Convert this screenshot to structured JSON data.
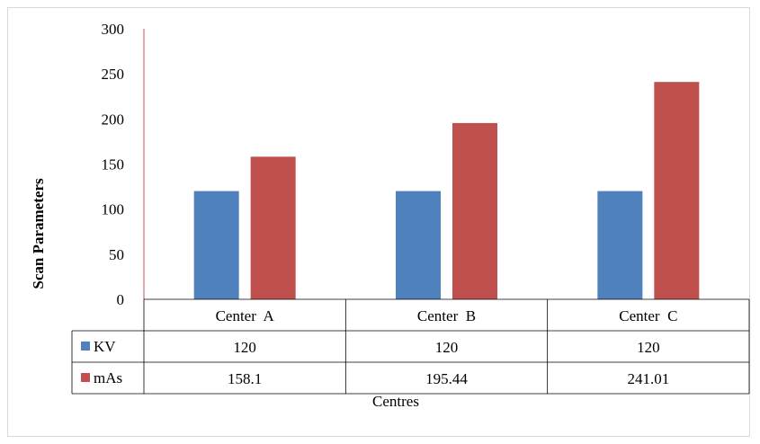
{
  "chart_data": {
    "type": "bar",
    "ylabel": "Scan Parameters",
    "xlabel": "Centres",
    "ylim": [
      0,
      300
    ],
    "yticks": [
      0,
      50,
      100,
      150,
      200,
      250,
      300
    ],
    "categories": [
      "Center  A",
      "Center  B",
      "Center  C"
    ],
    "series": [
      {
        "name": "KV",
        "color": "#4f81bd",
        "values": [
          120,
          120,
          120
        ],
        "labels": [
          "120",
          "120",
          "120"
        ]
      },
      {
        "name": "mAs",
        "color": "#c0504d",
        "values": [
          158.1,
          195.44,
          241.01
        ],
        "labels": [
          "158.1",
          "195.44",
          "241.01"
        ]
      }
    ],
    "grid": false,
    "legend": "data-table"
  }
}
